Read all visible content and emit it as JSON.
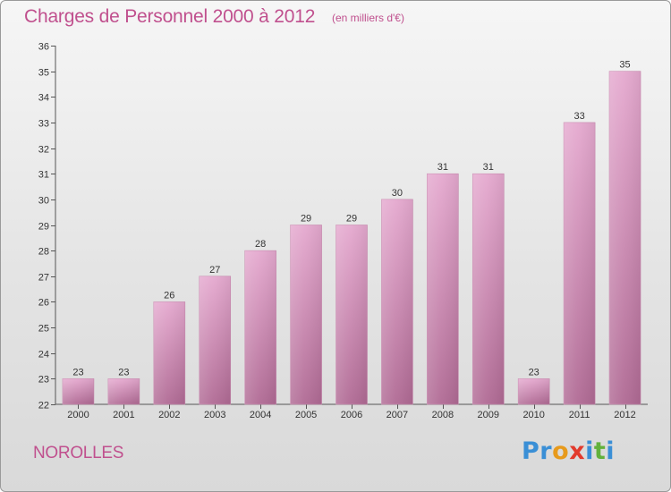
{
  "header": {
    "title": "Charges de Personnel 2000 à 2012",
    "subtitle": "(en milliers d'€)"
  },
  "footer": {
    "commune": "NOROLLES",
    "logo_letters": [
      {
        "ch": "P",
        "color": "#3a8fd6"
      },
      {
        "ch": "r",
        "color": "#3a8fd6"
      },
      {
        "ch": "o",
        "color": "#e79a1c"
      },
      {
        "ch": "x",
        "color": "#e23a2c"
      },
      {
        "ch": "i",
        "color": "#3a8fd6"
      },
      {
        "ch": "t",
        "color": "#62b13c"
      },
      {
        "ch": "i",
        "color": "#3a8fd6"
      }
    ]
  },
  "colors": {
    "bar_top": "#e5a9cf",
    "bar_bottom": "#b06a94",
    "title": "#c0508e"
  },
  "chart_data": {
    "type": "bar",
    "categories": [
      "2000",
      "2001",
      "2002",
      "2003",
      "2004",
      "2005",
      "2006",
      "2007",
      "2008",
      "2009",
      "2010",
      "2011",
      "2012"
    ],
    "values": [
      23,
      23,
      26,
      27,
      28,
      29,
      29,
      30,
      31,
      31,
      23,
      33,
      35
    ],
    "title": "Charges de Personnel 2000 à 2012",
    "subtitle": "(en milliers d'€)",
    "ylim": [
      22,
      36
    ],
    "yticks": [
      22,
      23,
      24,
      25,
      26,
      27,
      28,
      29,
      30,
      31,
      32,
      33,
      34,
      35,
      36
    ],
    "grid": false,
    "data_labels": true
  }
}
